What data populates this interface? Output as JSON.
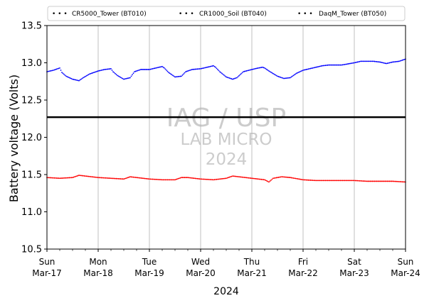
{
  "chart_data": {
    "type": "line",
    "title": "",
    "xlabel": "2024",
    "ylabel": "Battery voltage (Volts)",
    "x_range": [
      "2024-03-17",
      "2024-03-24"
    ],
    "ylim": [
      10.5,
      13.5
    ],
    "y_ticks": [
      "10.5",
      "11.0",
      "11.5",
      "12.0",
      "12.5",
      "13.0",
      "13.5"
    ],
    "x_ticks": [
      {
        "day": "Sun",
        "date": "Mar-17"
      },
      {
        "day": "Mon",
        "date": "Mar-18"
      },
      {
        "day": "Tue",
        "date": "Mar-19"
      },
      {
        "day": "Wed",
        "date": "Mar-20"
      },
      {
        "day": "Thu",
        "date": "Mar-21"
      },
      {
        "day": "Fri",
        "date": "Mar-22"
      },
      {
        "day": "Sat",
        "date": "Mar-23"
      },
      {
        "day": "Sun",
        "date": "Mar-24"
      }
    ],
    "grid": "vertical",
    "legend_position": "top",
    "reference_line": {
      "value": 12.27,
      "color": "#000000"
    },
    "watermark": [
      "IAG / USP",
      "LAB MICRO",
      "2024"
    ],
    "series": [
      {
        "name": "CR5000_Tower (BT010)",
        "color": "#0000ff",
        "points": [
          [
            "2024-03-17 00:00",
            12.88
          ],
          [
            "2024-03-17 03:00",
            12.9
          ],
          [
            "2024-03-17 05:00",
            12.92
          ],
          [
            "2024-03-17 06:00",
            12.93
          ],
          [
            "2024-03-17 07:00",
            12.87
          ],
          [
            "2024-03-17 09:00",
            12.82
          ],
          [
            "2024-03-17 12:00",
            12.78
          ],
          [
            "2024-03-17 15:00",
            12.76
          ],
          [
            "2024-03-17 17:00",
            12.8
          ],
          [
            "2024-03-17 20:00",
            12.85
          ],
          [
            "2024-03-18 00:00",
            12.89
          ],
          [
            "2024-03-18 03:00",
            12.91
          ],
          [
            "2024-03-18 06:00",
            12.92
          ],
          [
            "2024-03-18 07:00",
            12.88
          ],
          [
            "2024-03-18 09:00",
            12.83
          ],
          [
            "2024-03-18 12:00",
            12.78
          ],
          [
            "2024-03-18 15:00",
            12.8
          ],
          [
            "2024-03-18 17:00",
            12.88
          ],
          [
            "2024-03-18 20:00",
            12.91
          ],
          [
            "2024-03-19 00:00",
            12.91
          ],
          [
            "2024-03-19 03:00",
            12.93
          ],
          [
            "2024-03-19 06:00",
            12.95
          ],
          [
            "2024-03-19 07:00",
            12.93
          ],
          [
            "2024-03-19 09:00",
            12.87
          ],
          [
            "2024-03-19 12:00",
            12.81
          ],
          [
            "2024-03-19 15:00",
            12.82
          ],
          [
            "2024-03-19 17:00",
            12.88
          ],
          [
            "2024-03-19 20:00",
            12.91
          ],
          [
            "2024-03-20 00:00",
            12.92
          ],
          [
            "2024-03-20 03:00",
            12.94
          ],
          [
            "2024-03-20 06:00",
            12.96
          ],
          [
            "2024-03-20 07:00",
            12.94
          ],
          [
            "2024-03-20 09:00",
            12.88
          ],
          [
            "2024-03-20 12:00",
            12.81
          ],
          [
            "2024-03-20 15:00",
            12.78
          ],
          [
            "2024-03-20 17:00",
            12.8
          ],
          [
            "2024-03-20 20:00",
            12.88
          ],
          [
            "2024-03-21 00:00",
            12.91
          ],
          [
            "2024-03-21 03:00",
            12.93
          ],
          [
            "2024-03-21 05:00",
            12.94
          ],
          [
            "2024-03-21 06:00",
            12.93
          ],
          [
            "2024-03-21 08:00",
            12.89
          ],
          [
            "2024-03-21 12:00",
            12.82
          ],
          [
            "2024-03-21 15:00",
            12.79
          ],
          [
            "2024-03-21 18:00",
            12.8
          ],
          [
            "2024-03-21 21:00",
            12.86
          ],
          [
            "2024-03-22 00:00",
            12.9
          ],
          [
            "2024-03-22 03:00",
            12.92
          ],
          [
            "2024-03-22 06:00",
            12.94
          ],
          [
            "2024-03-22 09:00",
            12.96
          ],
          [
            "2024-03-22 12:00",
            12.97
          ],
          [
            "2024-03-22 18:00",
            12.97
          ],
          [
            "2024-03-23 00:00",
            13.0
          ],
          [
            "2024-03-23 03:00",
            13.02
          ],
          [
            "2024-03-23 06:00",
            13.02
          ],
          [
            "2024-03-23 09:00",
            13.02
          ],
          [
            "2024-03-23 12:00",
            13.01
          ],
          [
            "2024-03-23 15:00",
            12.99
          ],
          [
            "2024-03-23 18:00",
            13.01
          ],
          [
            "2024-03-23 21:00",
            13.02
          ],
          [
            "2024-03-24 00:00",
            13.05
          ]
        ]
      },
      {
        "name": "CR1000_Soil (BT040)",
        "color": "#ff0000",
        "points": [
          [
            "2024-03-17 00:00",
            11.46
          ],
          [
            "2024-03-17 06:00",
            11.45
          ],
          [
            "2024-03-17 12:00",
            11.46
          ],
          [
            "2024-03-17 15:00",
            11.49
          ],
          [
            "2024-03-17 18:00",
            11.48
          ],
          [
            "2024-03-18 00:00",
            11.46
          ],
          [
            "2024-03-18 06:00",
            11.45
          ],
          [
            "2024-03-18 12:00",
            11.44
          ],
          [
            "2024-03-18 15:00",
            11.47
          ],
          [
            "2024-03-18 18:00",
            11.46
          ],
          [
            "2024-03-19 00:00",
            11.44
          ],
          [
            "2024-03-19 06:00",
            11.43
          ],
          [
            "2024-03-19 12:00",
            11.43
          ],
          [
            "2024-03-19 15:00",
            11.46
          ],
          [
            "2024-03-19 18:00",
            11.46
          ],
          [
            "2024-03-20 00:00",
            11.44
          ],
          [
            "2024-03-20 06:00",
            11.43
          ],
          [
            "2024-03-20 12:00",
            11.45
          ],
          [
            "2024-03-20 15:00",
            11.48
          ],
          [
            "2024-03-20 18:00",
            11.47
          ],
          [
            "2024-03-21 00:00",
            11.45
          ],
          [
            "2024-03-21 06:00",
            11.43
          ],
          [
            "2024-03-21 08:00",
            11.4
          ],
          [
            "2024-03-21 10:00",
            11.45
          ],
          [
            "2024-03-21 14:00",
            11.47
          ],
          [
            "2024-03-21 18:00",
            11.46
          ],
          [
            "2024-03-22 00:00",
            11.43
          ],
          [
            "2024-03-22 06:00",
            11.42
          ],
          [
            "2024-03-22 12:00",
            11.42
          ],
          [
            "2024-03-22 18:00",
            11.42
          ],
          [
            "2024-03-23 00:00",
            11.42
          ],
          [
            "2024-03-23 06:00",
            11.41
          ],
          [
            "2024-03-23 12:00",
            11.41
          ],
          [
            "2024-03-23 18:00",
            11.41
          ],
          [
            "2024-03-24 00:00",
            11.4
          ]
        ]
      },
      {
        "name": "DaqM_Tower (BT050)",
        "color": "#333333",
        "points": []
      }
    ]
  }
}
